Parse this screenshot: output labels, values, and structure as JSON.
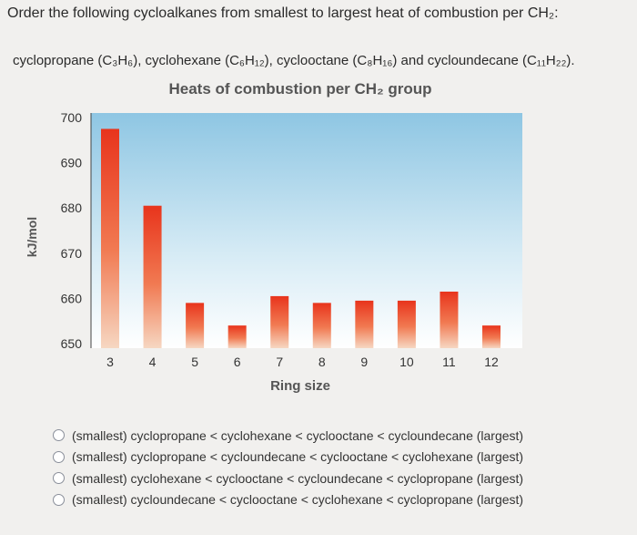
{
  "question": "Order the following cycloalkanes from smallest to largest heat of combustion per CH₂:",
  "compounds": [
    {
      "name": "cyclopropane",
      "formula": "C₃H₆"
    },
    {
      "name": "cyclohexane",
      "formula": "C₆H₁₂"
    },
    {
      "name": "cyclooctane",
      "formula": "C₈H₁₆"
    },
    {
      "name": "cycloundecane",
      "formula": "C₁₁H₂₂"
    }
  ],
  "compounds_text": "cyclopropane (C₃H₆), cyclohexane (C₆H₁₂), cyclooctane (C₈H₁₆) and cycloundecane (C₁₁H₂₂).",
  "chart_data": {
    "type": "bar",
    "title": "Heats of combustion per CH₂ group",
    "xlabel": "Ring size",
    "ylabel": "kJ/mol",
    "categories": [
      "3",
      "4",
      "5",
      "6",
      "7",
      "8",
      "9",
      "10",
      "11",
      "12"
    ],
    "values": [
      697.5,
      680.5,
      659,
      654,
      660.5,
      659,
      659.5,
      659.5,
      661.5,
      654
    ],
    "yticks": [
      650,
      660,
      670,
      680,
      690,
      700
    ],
    "ylim": [
      650,
      700
    ],
    "grid": false,
    "colors": {
      "bar_top": "#e8341c",
      "bar_bottom": "#f6d7c2",
      "plot_top": "#8ec6e3",
      "plot_bottom": "#ffffff"
    }
  },
  "options": [
    "(smallest) cyclopropane < cyclohexane < cyclooctane < cycloundecane (largest)",
    "(smallest) cyclopropane < cycloundecane < cyclooctane < cyclohexane (largest)",
    "(smallest) cyclohexane < cyclooctane < cycloundecane < cyclopropane (largest)",
    "(smallest) cycloundecane < cyclooctane < cyclohexane < cyclopropane (largest)"
  ]
}
